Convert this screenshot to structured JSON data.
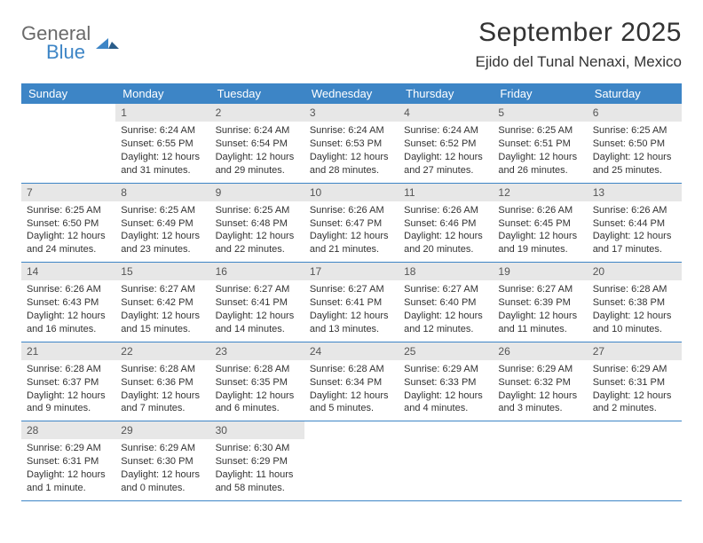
{
  "brand": {
    "word1": "General",
    "word2": "Blue"
  },
  "title": "September 2025",
  "location": "Ejido del Tunal Nenaxi, Mexico",
  "colors": {
    "accent": "#3d85c6",
    "daynum_bg": "#e7e7e7",
    "text": "#333333"
  },
  "dow": [
    "Sunday",
    "Monday",
    "Tuesday",
    "Wednesday",
    "Thursday",
    "Friday",
    "Saturday"
  ],
  "weeks": [
    [
      {
        "n": "",
        "sr": "",
        "ss": "",
        "dl": "",
        "empty": true
      },
      {
        "n": "1",
        "sr": "Sunrise: 6:24 AM",
        "ss": "Sunset: 6:55 PM",
        "dl": "Daylight: 12 hours and 31 minutes."
      },
      {
        "n": "2",
        "sr": "Sunrise: 6:24 AM",
        "ss": "Sunset: 6:54 PM",
        "dl": "Daylight: 12 hours and 29 minutes."
      },
      {
        "n": "3",
        "sr": "Sunrise: 6:24 AM",
        "ss": "Sunset: 6:53 PM",
        "dl": "Daylight: 12 hours and 28 minutes."
      },
      {
        "n": "4",
        "sr": "Sunrise: 6:24 AM",
        "ss": "Sunset: 6:52 PM",
        "dl": "Daylight: 12 hours and 27 minutes."
      },
      {
        "n": "5",
        "sr": "Sunrise: 6:25 AM",
        "ss": "Sunset: 6:51 PM",
        "dl": "Daylight: 12 hours and 26 minutes."
      },
      {
        "n": "6",
        "sr": "Sunrise: 6:25 AM",
        "ss": "Sunset: 6:50 PM",
        "dl": "Daylight: 12 hours and 25 minutes."
      }
    ],
    [
      {
        "n": "7",
        "sr": "Sunrise: 6:25 AM",
        "ss": "Sunset: 6:50 PM",
        "dl": "Daylight: 12 hours and 24 minutes."
      },
      {
        "n": "8",
        "sr": "Sunrise: 6:25 AM",
        "ss": "Sunset: 6:49 PM",
        "dl": "Daylight: 12 hours and 23 minutes."
      },
      {
        "n": "9",
        "sr": "Sunrise: 6:25 AM",
        "ss": "Sunset: 6:48 PM",
        "dl": "Daylight: 12 hours and 22 minutes."
      },
      {
        "n": "10",
        "sr": "Sunrise: 6:26 AM",
        "ss": "Sunset: 6:47 PM",
        "dl": "Daylight: 12 hours and 21 minutes."
      },
      {
        "n": "11",
        "sr": "Sunrise: 6:26 AM",
        "ss": "Sunset: 6:46 PM",
        "dl": "Daylight: 12 hours and 20 minutes."
      },
      {
        "n": "12",
        "sr": "Sunrise: 6:26 AM",
        "ss": "Sunset: 6:45 PM",
        "dl": "Daylight: 12 hours and 19 minutes."
      },
      {
        "n": "13",
        "sr": "Sunrise: 6:26 AM",
        "ss": "Sunset: 6:44 PM",
        "dl": "Daylight: 12 hours and 17 minutes."
      }
    ],
    [
      {
        "n": "14",
        "sr": "Sunrise: 6:26 AM",
        "ss": "Sunset: 6:43 PM",
        "dl": "Daylight: 12 hours and 16 minutes."
      },
      {
        "n": "15",
        "sr": "Sunrise: 6:27 AM",
        "ss": "Sunset: 6:42 PM",
        "dl": "Daylight: 12 hours and 15 minutes."
      },
      {
        "n": "16",
        "sr": "Sunrise: 6:27 AM",
        "ss": "Sunset: 6:41 PM",
        "dl": "Daylight: 12 hours and 14 minutes."
      },
      {
        "n": "17",
        "sr": "Sunrise: 6:27 AM",
        "ss": "Sunset: 6:41 PM",
        "dl": "Daylight: 12 hours and 13 minutes."
      },
      {
        "n": "18",
        "sr": "Sunrise: 6:27 AM",
        "ss": "Sunset: 6:40 PM",
        "dl": "Daylight: 12 hours and 12 minutes."
      },
      {
        "n": "19",
        "sr": "Sunrise: 6:27 AM",
        "ss": "Sunset: 6:39 PM",
        "dl": "Daylight: 12 hours and 11 minutes."
      },
      {
        "n": "20",
        "sr": "Sunrise: 6:28 AM",
        "ss": "Sunset: 6:38 PM",
        "dl": "Daylight: 12 hours and 10 minutes."
      }
    ],
    [
      {
        "n": "21",
        "sr": "Sunrise: 6:28 AM",
        "ss": "Sunset: 6:37 PM",
        "dl": "Daylight: 12 hours and 9 minutes."
      },
      {
        "n": "22",
        "sr": "Sunrise: 6:28 AM",
        "ss": "Sunset: 6:36 PM",
        "dl": "Daylight: 12 hours and 7 minutes."
      },
      {
        "n": "23",
        "sr": "Sunrise: 6:28 AM",
        "ss": "Sunset: 6:35 PM",
        "dl": "Daylight: 12 hours and 6 minutes."
      },
      {
        "n": "24",
        "sr": "Sunrise: 6:28 AM",
        "ss": "Sunset: 6:34 PM",
        "dl": "Daylight: 12 hours and 5 minutes."
      },
      {
        "n": "25",
        "sr": "Sunrise: 6:29 AM",
        "ss": "Sunset: 6:33 PM",
        "dl": "Daylight: 12 hours and 4 minutes."
      },
      {
        "n": "26",
        "sr": "Sunrise: 6:29 AM",
        "ss": "Sunset: 6:32 PM",
        "dl": "Daylight: 12 hours and 3 minutes."
      },
      {
        "n": "27",
        "sr": "Sunrise: 6:29 AM",
        "ss": "Sunset: 6:31 PM",
        "dl": "Daylight: 12 hours and 2 minutes."
      }
    ],
    [
      {
        "n": "28",
        "sr": "Sunrise: 6:29 AM",
        "ss": "Sunset: 6:31 PM",
        "dl": "Daylight: 12 hours and 1 minute."
      },
      {
        "n": "29",
        "sr": "Sunrise: 6:29 AM",
        "ss": "Sunset: 6:30 PM",
        "dl": "Daylight: 12 hours and 0 minutes."
      },
      {
        "n": "30",
        "sr": "Sunrise: 6:30 AM",
        "ss": "Sunset: 6:29 PM",
        "dl": "Daylight: 11 hours and 58 minutes."
      },
      {
        "n": "",
        "sr": "",
        "ss": "",
        "dl": "",
        "empty": true
      },
      {
        "n": "",
        "sr": "",
        "ss": "",
        "dl": "",
        "empty": true
      },
      {
        "n": "",
        "sr": "",
        "ss": "",
        "dl": "",
        "empty": true
      },
      {
        "n": "",
        "sr": "",
        "ss": "",
        "dl": "",
        "empty": true
      }
    ]
  ]
}
